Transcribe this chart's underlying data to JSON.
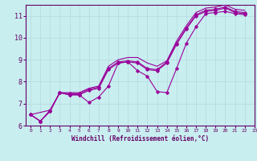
{
  "bg_color": "#c8eef0",
  "line_color": "#990099",
  "grid_color": "#b8dde0",
  "axis_color": "#660066",
  "xlabel": "Windchill (Refroidissement éolien,°C)",
  "xlim": [
    -0.5,
    23
  ],
  "ylim": [
    6,
    11.5
  ],
  "yticks": [
    6,
    7,
    8,
    9,
    10,
    11
  ],
  "xticks": [
    0,
    1,
    2,
    3,
    4,
    5,
    6,
    7,
    8,
    9,
    10,
    11,
    12,
    13,
    14,
    15,
    16,
    17,
    18,
    19,
    20,
    21,
    22,
    23
  ],
  "series": [
    {
      "x": [
        0,
        1,
        2,
        3,
        4,
        5,
        6,
        7,
        8,
        9,
        10,
        11,
        12,
        13,
        14,
        15,
        16,
        17,
        18,
        19,
        20,
        21,
        22
      ],
      "y": [
        6.5,
        6.2,
        6.65,
        7.5,
        7.4,
        7.4,
        7.05,
        7.3,
        7.8,
        8.85,
        8.9,
        8.5,
        8.25,
        7.55,
        7.5,
        8.6,
        9.75,
        10.5,
        11.1,
        11.15,
        11.2,
        11.1,
        11.05
      ],
      "marker": true
    },
    {
      "x": [
        0,
        1,
        2,
        3,
        4,
        5,
        6,
        7,
        8,
        9,
        10,
        11,
        12,
        13,
        14,
        15,
        16,
        17,
        18,
        19,
        20,
        21,
        22
      ],
      "y": [
        6.5,
        6.2,
        6.65,
        7.5,
        7.4,
        7.4,
        7.6,
        7.7,
        8.55,
        8.85,
        8.9,
        8.85,
        8.55,
        8.5,
        8.85,
        9.7,
        10.4,
        11.0,
        11.2,
        11.25,
        11.35,
        11.15,
        11.1
      ],
      "marker": true
    },
    {
      "x": [
        0,
        1,
        2,
        3,
        4,
        5,
        6,
        7,
        8,
        9,
        10,
        11,
        12,
        13,
        14,
        15,
        16,
        17,
        18,
        19,
        20,
        21,
        22
      ],
      "y": [
        6.5,
        6.2,
        6.7,
        7.5,
        7.45,
        7.45,
        7.65,
        7.75,
        8.6,
        8.9,
        8.95,
        8.9,
        8.6,
        8.55,
        8.9,
        9.75,
        10.45,
        11.05,
        11.25,
        11.3,
        11.4,
        11.2,
        11.15
      ],
      "marker": true
    },
    {
      "x": [
        0,
        2,
        3,
        4,
        5,
        6,
        7,
        8,
        9,
        10,
        11,
        12,
        13,
        14,
        15,
        16,
        17,
        18,
        19,
        20,
        21,
        22
      ],
      "y": [
        6.5,
        6.7,
        7.5,
        7.5,
        7.5,
        7.7,
        7.8,
        8.7,
        9.0,
        9.1,
        9.1,
        8.85,
        8.7,
        8.95,
        9.85,
        10.55,
        11.15,
        11.35,
        11.4,
        11.5,
        11.3,
        11.25
      ],
      "marker": false
    }
  ]
}
